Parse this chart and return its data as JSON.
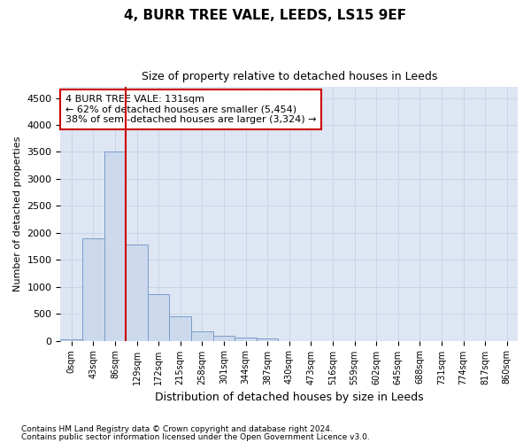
{
  "title1": "4, BURR TREE VALE, LEEDS, LS15 9EF",
  "title2": "Size of property relative to detached houses in Leeds",
  "xlabel": "Distribution of detached houses by size in Leeds",
  "ylabel": "Number of detached properties",
  "bar_labels": [
    "0sqm",
    "43sqm",
    "86sqm",
    "129sqm",
    "172sqm",
    "215sqm",
    "258sqm",
    "301sqm",
    "344sqm",
    "387sqm",
    "430sqm",
    "473sqm",
    "516sqm",
    "559sqm",
    "602sqm",
    "645sqm",
    "688sqm",
    "731sqm",
    "774sqm",
    "817sqm",
    "860sqm"
  ],
  "bar_values": [
    30,
    1900,
    3500,
    1780,
    860,
    460,
    175,
    90,
    55,
    35,
    0,
    0,
    0,
    0,
    0,
    0,
    0,
    0,
    0,
    0,
    0
  ],
  "bar_color": "#ccd9ed",
  "bar_edge_color": "#7a9cc8",
  "vline_color": "#cc0000",
  "vline_position": 2.5,
  "annotation_text": "4 BURR TREE VALE: 131sqm\n← 62% of detached houses are smaller (5,454)\n38% of semi-detached houses are larger (3,324) →",
  "annotation_box_color": "#cc0000",
  "ylim": [
    0,
    4700
  ],
  "yticks": [
    0,
    500,
    1000,
    1500,
    2000,
    2500,
    3000,
    3500,
    4000,
    4500
  ],
  "grid_color": "#c8d4e8",
  "background_color": "#dde6f2",
  "footnote1": "Contains HM Land Registry data © Crown copyright and database right 2024.",
  "footnote2": "Contains public sector information licensed under the Open Government Licence v3.0."
}
